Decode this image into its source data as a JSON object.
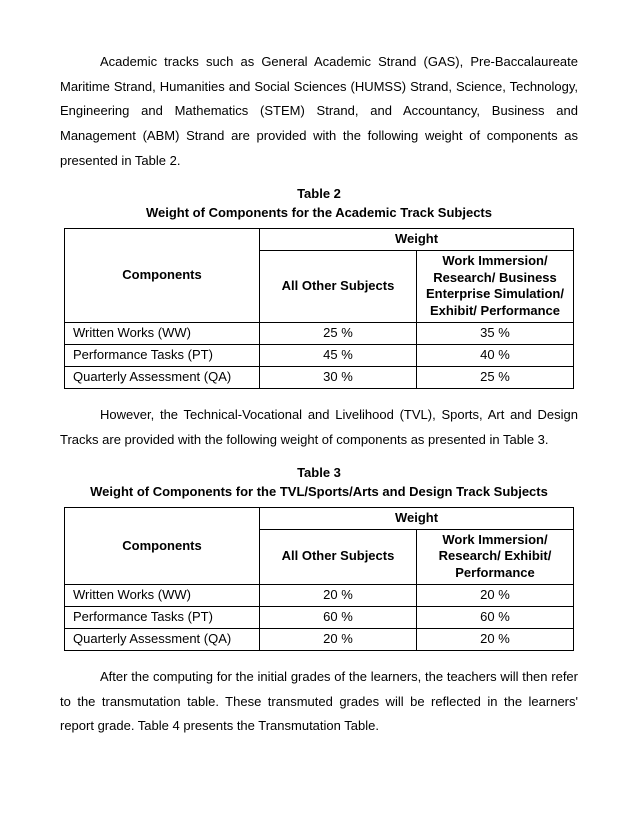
{
  "para1": "Academic tracks such as General Academic Strand (GAS), Pre-Baccalaureate Maritime Strand, Humanities and Social Sciences (HUMSS) Strand, Science, Technology, Engineering and Mathematics (STEM) Strand, and Accountancy, Business and Management (ABM) Strand are provided with the following weight of components as presented in Table 2.",
  "table2": {
    "label": "Table 2",
    "title": "Weight of Components for the Academic Track Subjects",
    "weight_header": "Weight",
    "components_header": "Components",
    "col1": "All Other Subjects",
    "col2": "Work Immersion/ Research/ Business Enterprise Simulation/ Exhibit/ Performance",
    "rows": [
      {
        "name": "Written Works (WW)",
        "v1": "25 %",
        "v2": "35 %"
      },
      {
        "name": "Performance Tasks (PT)",
        "v1": "45 %",
        "v2": "40 %"
      },
      {
        "name": "Quarterly Assessment (QA)",
        "v1": "30 %",
        "v2": "25 %"
      }
    ]
  },
  "para2": "However, the Technical-Vocational and Livelihood (TVL), Sports, Art and Design Tracks are provided with the following weight of components as presented in Table 3.",
  "table3": {
    "label": "Table 3",
    "title": "Weight of Components for the TVL/Sports/Arts and Design Track Subjects",
    "weight_header": "Weight",
    "components_header": "Components",
    "col1": "All Other Subjects",
    "col2": "Work Immersion/ Research/ Exhibit/ Performance",
    "rows": [
      {
        "name": "Written Works (WW)",
        "v1": "20 %",
        "v2": "20 %"
      },
      {
        "name": "Performance Tasks (PT)",
        "v1": "60 %",
        "v2": "60 %"
      },
      {
        "name": "Quarterly Assessment (QA)",
        "v1": "20 %",
        "v2": "20 %"
      }
    ]
  },
  "para3": "After the computing for the initial grades of the learners, the teachers will then refer to the transmutation table. These transmuted grades will be reflected in the learners' report grade. Table 4 presents the Transmutation Table."
}
